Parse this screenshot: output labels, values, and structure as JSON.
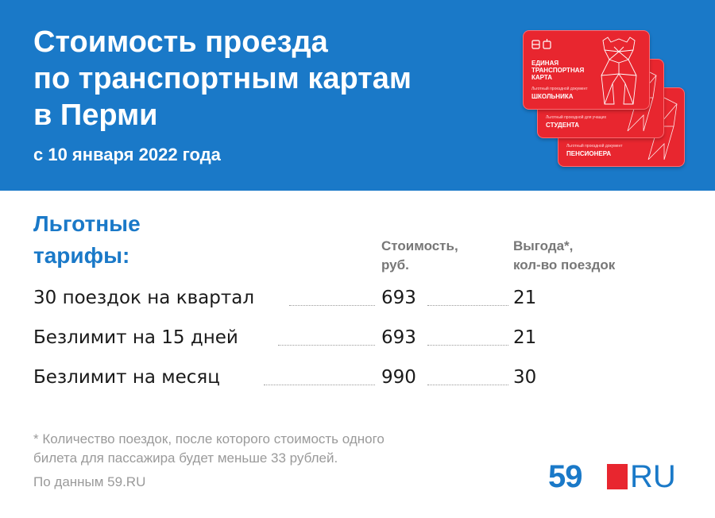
{
  "header": {
    "title_lines": [
      "Стоимость проезда",
      "по транспортным картам",
      "в Перми"
    ],
    "subtitle": "с 10 января 2022 года"
  },
  "cards": {
    "front": {
      "brand_lines": [
        "ЕДИНАЯ",
        "ТРАНСПОРТНАЯ",
        "КАРТА"
      ],
      "small": "Льготный проездной документ",
      "label": "ШКОЛЬНИКА"
    },
    "middle": {
      "small": "Льготный проездной для учащих",
      "label": "СТУДЕНТА"
    },
    "back": {
      "small": "Льготный проездной документ",
      "label": "ПЕНСИОНЕРА"
    }
  },
  "section": {
    "title_lines": [
      "Льготные",
      "тарифы:"
    ],
    "col_price_lines": [
      "Стоимость,",
      "руб."
    ],
    "col_benefit_lines": [
      "Выгода*,",
      "кол-во поездок"
    ]
  },
  "rows": [
    {
      "name": "30 поездок на квартал",
      "price": "693",
      "benefit": "21"
    },
    {
      "name": "Безлимит на 15 дней",
      "price": "693",
      "benefit": "21"
    },
    {
      "name": "Безлимит на месяц",
      "price": "990",
      "benefit": "30"
    }
  ],
  "footnote_lines": [
    "* Количество поездок, после которого стоимость одного",
    "билета для пассажира будет меньше 33 рублей."
  ],
  "source": "По данным 59.RU",
  "logo": {
    "number": "59",
    "suffix": "RU"
  },
  "colors": {
    "brand_blue": "#1a79c8",
    "card_red": "#e8262f",
    "muted_gray": "#9a9a9a"
  }
}
